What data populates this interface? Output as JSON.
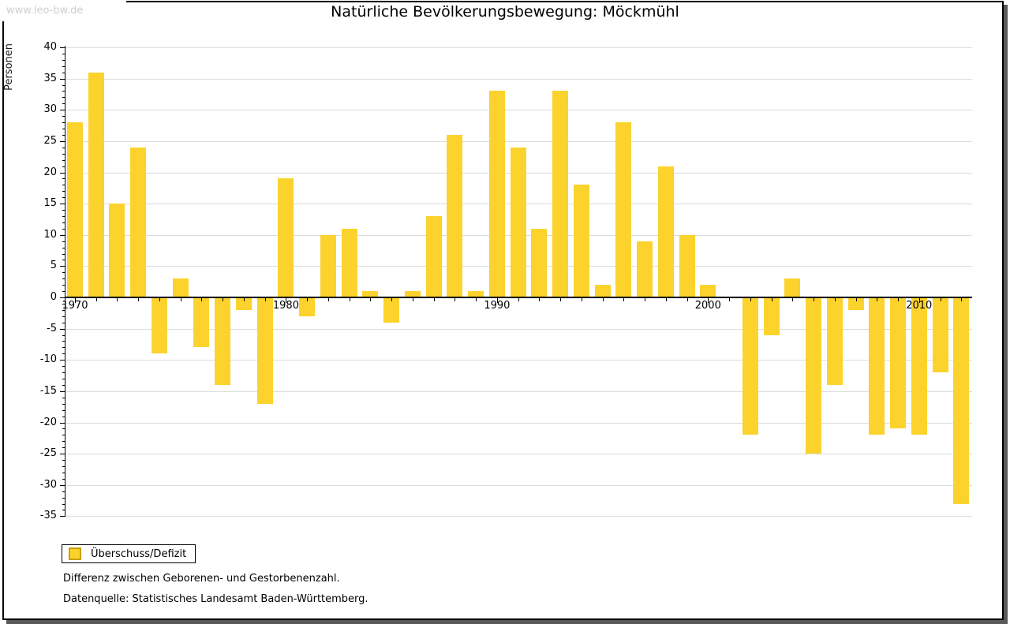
{
  "watermark": "www.leo-bw.de",
  "title": "Natürliche Bevölkerungsbewegung: Möckmühl",
  "legend": {
    "label": "Überschuss/Defizit",
    "swatch_color": "#FCD32D",
    "swatch_border_color": "#C8A000"
  },
  "footnotes": {
    "line1": "Differenz zwischen Geborenen- und Gestorbenenzahl.",
    "line2": "Datenquelle: Statistisches Landesamt Baden-Württemberg."
  },
  "chart_data": {
    "type": "bar",
    "title": "Natürliche Bevölkerungsbewegung: Möckmühl",
    "xlabel": "",
    "ylabel": "Personen",
    "ylim": [
      -35,
      40
    ],
    "ytick_step": 5,
    "y_minor_tick_step": 1,
    "grid": true,
    "legend_position": "bottom-left",
    "series_name": "Überschuss/Defizit",
    "bar_color": "#FCD32D",
    "gridline_color": "#dcdcdc",
    "x_decade_labels": [
      1970,
      1980,
      1990,
      2000,
      2010
    ],
    "categories": [
      1970,
      1971,
      1972,
      1973,
      1974,
      1975,
      1976,
      1977,
      1978,
      1979,
      1980,
      1981,
      1982,
      1983,
      1984,
      1985,
      1986,
      1987,
      1988,
      1989,
      1990,
      1991,
      1992,
      1993,
      1994,
      1995,
      1996,
      1997,
      1998,
      1999,
      2000,
      2001,
      2002,
      2003,
      2004,
      2005,
      2006,
      2007,
      2008,
      2009,
      2010,
      2011,
      2012
    ],
    "values": [
      28,
      36,
      15,
      24,
      -9,
      3,
      -8,
      -14,
      -2,
      -17,
      19,
      -3,
      10,
      11,
      1,
      -4,
      1,
      13,
      26,
      1,
      33,
      24,
      11,
      33,
      18,
      2,
      28,
      9,
      21,
      10,
      2,
      0,
      -22,
      -6,
      3,
      -25,
      -14,
      -2,
      -22,
      -21,
      -22,
      -12,
      -33
    ]
  }
}
